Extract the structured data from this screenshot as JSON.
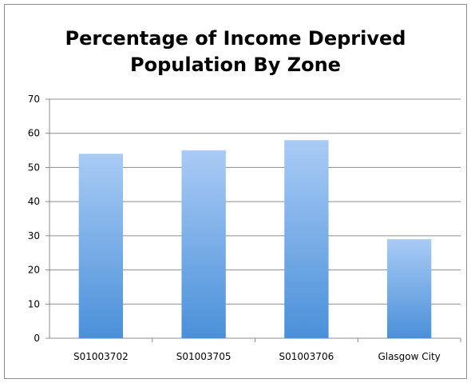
{
  "chart_data": {
    "type": "bar",
    "title_lines": [
      "Percentage of Income Deprived",
      "Population By Zone"
    ],
    "categories": [
      "S01003702",
      "S01003705",
      "S01003706",
      "Glasgow City"
    ],
    "values": [
      54,
      55,
      58,
      29
    ],
    "y_ticks": [
      "0",
      "10",
      "20",
      "30",
      "40",
      "50",
      "60",
      "70"
    ],
    "ylim": [
      0,
      70
    ],
    "grid": true,
    "bar_color_top": "#a9cbf5",
    "bar_color_bottom": "#4a90d9"
  }
}
